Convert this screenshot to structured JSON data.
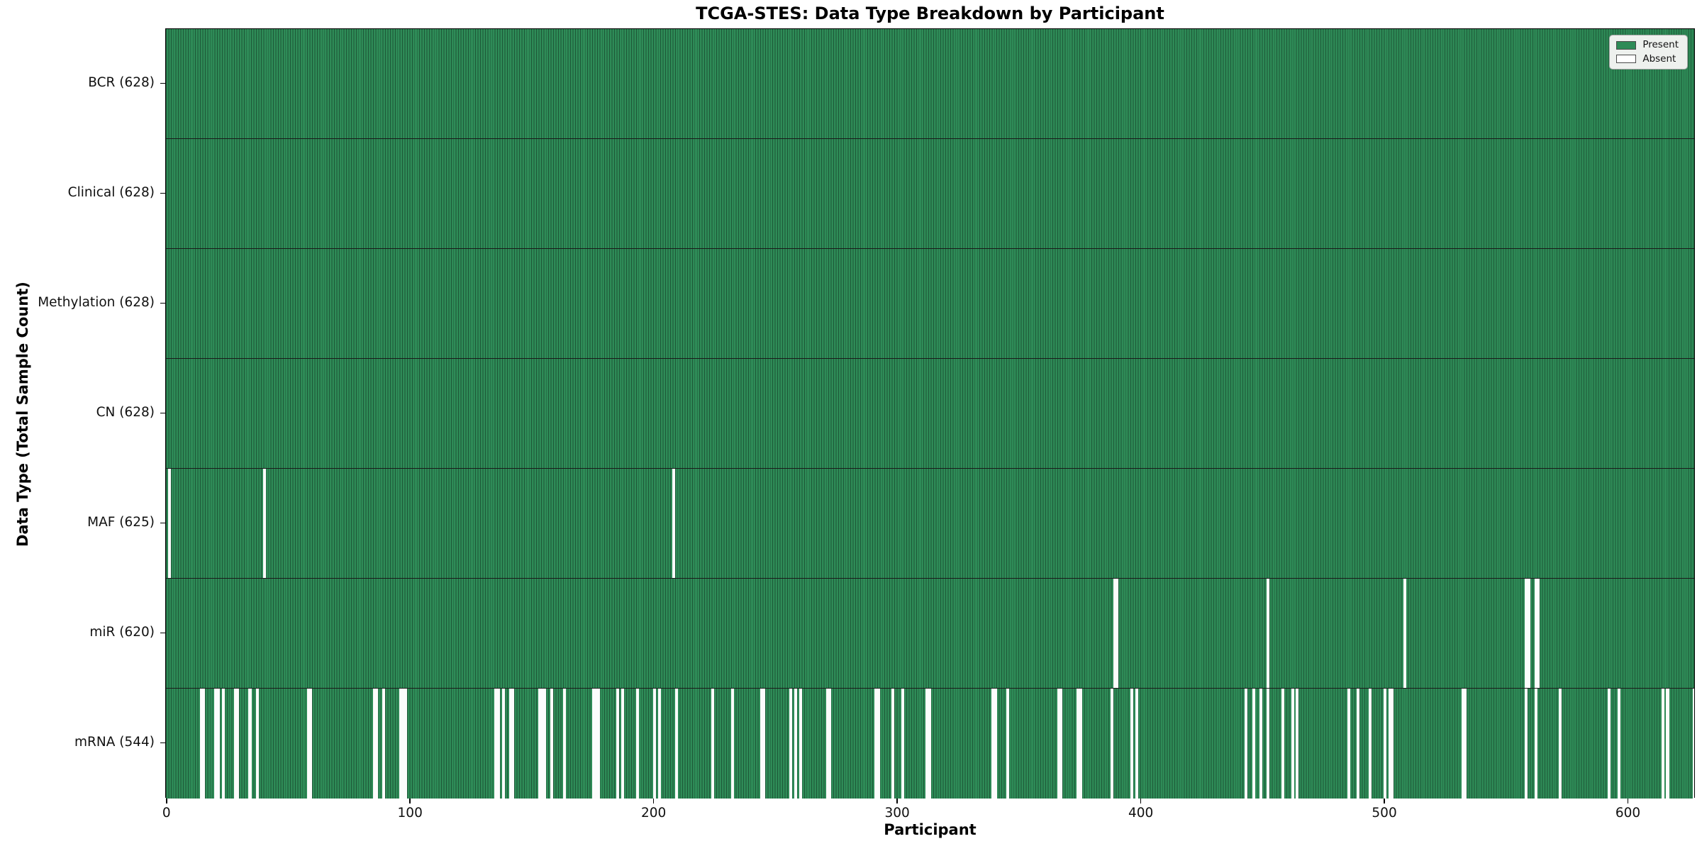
{
  "title": "TCGA-STES: Data Type Breakdown by Participant",
  "axes": {
    "xlabel": "Participant",
    "ylabel": "Data Type (Total Sample Count)"
  },
  "legend": {
    "present_label": "Present",
    "absent_label": "Absent"
  },
  "colors": {
    "present_fill": "#2e8b57",
    "bar_edge": "#1d5737",
    "absent_fill": "#fcfcfc",
    "legend_bg": "#eef1ee",
    "legend_border": "#a9a9a9"
  },
  "chart_data": {
    "type": "heatmap",
    "title": "TCGA-STES: Data Type Breakdown by Participant",
    "xlabel": "Participant",
    "ylabel": "Data Type (Total Sample Count)",
    "legend_entries": [
      "Present",
      "Absent"
    ],
    "legend_position": "upper right",
    "grid": false,
    "n_participants": 628,
    "x_ticks": [
      0,
      100,
      200,
      300,
      400,
      500,
      600
    ],
    "xlim": [
      -0.5,
      627.5
    ],
    "rows": [
      {
        "label": "BCR (628)",
        "data_type": "BCR",
        "present_count": 628,
        "absent_participants": []
      },
      {
        "label": "Clinical (628)",
        "data_type": "Clinical",
        "present_count": 628,
        "absent_participants": []
      },
      {
        "label": "Methylation (628)",
        "data_type": "Methylation",
        "present_count": 628,
        "absent_participants": []
      },
      {
        "label": "CN (628)",
        "data_type": "CN",
        "present_count": 628,
        "absent_participants": []
      },
      {
        "label": "MAF (625)",
        "data_type": "MAF",
        "present_count": 625,
        "absent_participants": [
          1,
          40,
          208
        ]
      },
      {
        "label": "miR (620)",
        "data_type": "miR",
        "present_count": 620,
        "absent_participants": [
          389,
          390,
          452,
          508,
          558,
          559,
          562,
          563
        ]
      },
      {
        "label": "mRNA (544)",
        "data_type": "mRNA",
        "present_count": 544,
        "absent_participants": [
          14,
          15,
          20,
          21,
          23,
          28,
          29,
          34,
          37,
          58,
          59,
          85,
          86,
          89,
          96,
          97,
          98,
          135,
          136,
          138,
          141,
          142,
          153,
          154,
          155,
          158,
          163,
          175,
          176,
          177,
          185,
          187,
          193,
          200,
          202,
          209,
          224,
          232,
          244,
          245,
          256,
          258,
          260,
          271,
          272,
          291,
          292,
          298,
          302,
          312,
          313,
          339,
          340,
          345,
          366,
          367,
          374,
          375,
          388,
          396,
          398,
          443,
          446,
          449,
          452,
          458,
          462,
          464,
          485,
          489,
          494,
          500,
          502,
          503,
          532,
          533,
          558,
          562,
          572,
          592,
          596,
          614,
          616,
          627
        ]
      }
    ]
  }
}
